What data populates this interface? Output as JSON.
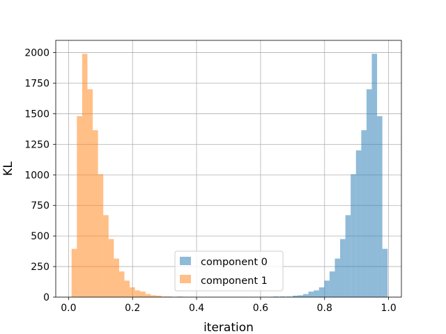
{
  "chart_data": {
    "type": "bar",
    "title": "",
    "xlabel": "iteration",
    "ylabel": "KL",
    "xlim": [
      -0.04,
      1.04
    ],
    "ylim": [
      0,
      2100
    ],
    "xticks": [
      "0.0",
      "0.2",
      "0.4",
      "0.6",
      "0.8",
      "1.0"
    ],
    "yticks": [
      "0",
      "250",
      "500",
      "750",
      "1000",
      "1250",
      "1500",
      "1750",
      "2000"
    ],
    "grid": true,
    "legend_position": "lower-center",
    "bin_width": 0.0165,
    "series": [
      {
        "name": "component 0",
        "color": "#1f77b4",
        "alpha": 0.5,
        "bin_starts": [
          0.64,
          0.66,
          0.68,
          0.7,
          0.7165,
          0.733,
          0.7495,
          0.766,
          0.7825,
          0.799,
          0.8155,
          0.832,
          0.8485,
          0.865,
          0.8815,
          0.898,
          0.9145,
          0.931,
          0.9475,
          0.964,
          0.9805
        ],
        "values": [
          5,
          5,
          5,
          12,
          15,
          25,
          45,
          55,
          80,
          135,
          210,
          315,
          475,
          670,
          1005,
          1200,
          1365,
          1700,
          1990,
          1480,
          395
        ]
      },
      {
        "name": "component 1",
        "color": "#ff7f0e",
        "alpha": 0.5,
        "bin_starts": [
          0.0095,
          0.026,
          0.0425,
          0.059,
          0.0755,
          0.092,
          0.1085,
          0.125,
          0.1415,
          0.158,
          0.1745,
          0.191,
          0.2075,
          0.224,
          0.2405,
          0.257,
          0.2735,
          0.29,
          0.3065,
          0.34
        ],
        "values": [
          395,
          1480,
          1990,
          1700,
          1365,
          1005,
          670,
          475,
          315,
          210,
          135,
          80,
          55,
          45,
          25,
          15,
          12,
          5,
          5,
          5
        ]
      }
    ]
  }
}
